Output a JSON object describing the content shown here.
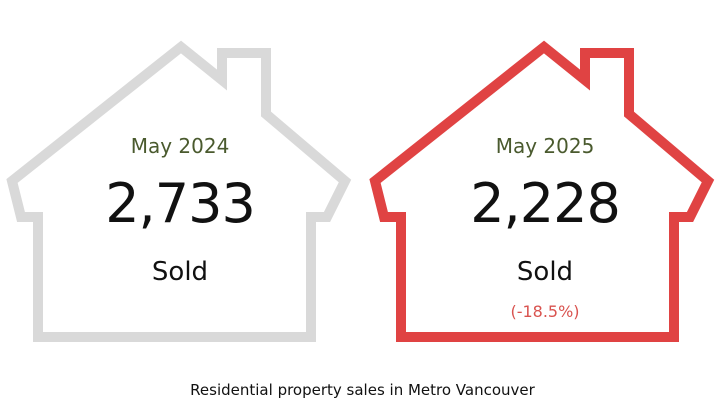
{
  "cards": [
    {
      "period": "May 2024",
      "count": "2,733",
      "label": "Sold",
      "change": "",
      "outline_color": "#d9d9d9"
    },
    {
      "period": "May 2025",
      "count": "2,228",
      "label": "Sold",
      "change": "(-18.5%)",
      "outline_color": "#e04343",
      "change_color": "#d9534f"
    }
  ],
  "caption": "Residential property sales in Metro Vancouver"
}
